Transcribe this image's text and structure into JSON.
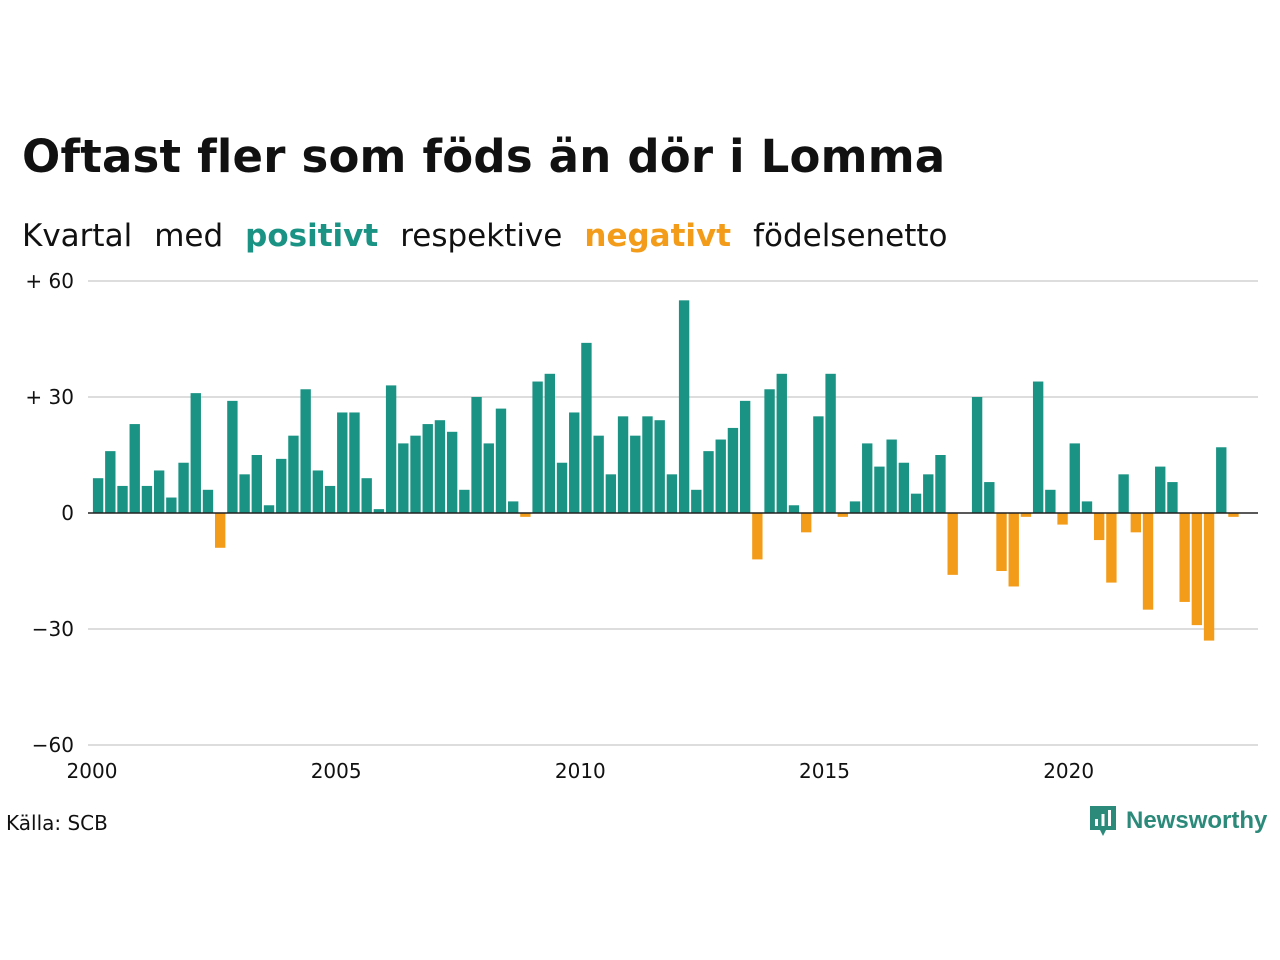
{
  "header": {
    "title": "Oftast fler som föds än dör i Lomma",
    "subtitle_parts": [
      "Kvartal",
      "med",
      "positivt",
      "respektive",
      "negativt",
      "födelsenetto"
    ]
  },
  "footer": {
    "source": "Källa: SCB",
    "brand": "Newsworthy"
  },
  "colors": {
    "positive": "#1b9384",
    "negative": "#f39c1a",
    "grid": "#dddddd",
    "zero_line": "#222222",
    "brand": "#2b8a7a"
  },
  "chart_data": {
    "type": "bar",
    "title": "Oftast fler som föds än dör i Lomma",
    "subtitle": "Kvartal med positivt respektive negativt födelsenetto",
    "xlabel": "",
    "ylabel": "",
    "ylim": [
      -60,
      60
    ],
    "yticks": [
      60,
      30,
      0,
      -30,
      -60
    ],
    "ytick_labels": [
      "+ 60",
      "+ 30",
      "0",
      "−30",
      "−60"
    ],
    "xlim": [
      2000,
      2024
    ],
    "xticks": [
      2000,
      2005,
      2010,
      2015,
      2020
    ],
    "xtick_labels": [
      "2000",
      "2005",
      "2010",
      "2015",
      "2020"
    ],
    "grid": true,
    "start_year": 2000,
    "values": [
      9,
      16,
      7,
      23,
      7,
      11,
      4,
      13,
      31,
      6,
      -9,
      29,
      10,
      15,
      2,
      14,
      20,
      32,
      11,
      7,
      26,
      26,
      9,
      1,
      33,
      18,
      20,
      23,
      24,
      21,
      6,
      30,
      18,
      27,
      3,
      -1,
      34,
      36,
      13,
      26,
      44,
      20,
      10,
      25,
      20,
      25,
      24,
      10,
      55,
      6,
      16,
      19,
      22,
      29,
      -12,
      32,
      36,
      2,
      -5,
      25,
      36,
      -1,
      3,
      18,
      12,
      19,
      13,
      5,
      10,
      15,
      -16,
      0,
      30,
      8,
      -15,
      -19,
      -1,
      34,
      6,
      -3,
      18,
      3,
      -7,
      -18,
      10,
      -5,
      -25,
      12,
      8,
      -23,
      -29,
      -33,
      17,
      -1
    ]
  }
}
